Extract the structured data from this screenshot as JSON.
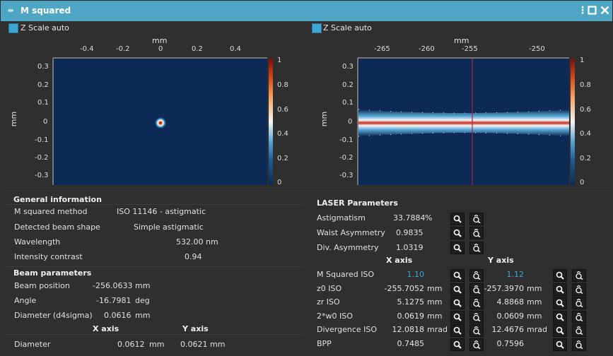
{
  "window": {
    "title": "M squared"
  },
  "left_plot": {
    "zscale_label": "Z Scale auto",
    "x_unit": "mm",
    "y_unit": "mm",
    "x_ticks": [
      "-0.4",
      "-0.2",
      "0",
      "0.2",
      "0.4"
    ],
    "y_ticks": [
      "0.3",
      "0.2",
      "0.1",
      "0",
      "-0.1",
      "-0.2",
      "-0.3"
    ],
    "colorbar_ticks": [
      "1",
      "0.8",
      "0.6",
      "0.4",
      "0.2",
      "0"
    ]
  },
  "right_plot": {
    "zscale_label": "Z Scale auto",
    "x_unit": "mm",
    "y_unit": "mm",
    "x_ticks": [
      "-265",
      "-260",
      "-255",
      "-250"
    ],
    "y_ticks": [
      "0.3",
      "0.2",
      "0.1",
      "0",
      "-0.1",
      "-0.2",
      "-0.3"
    ],
    "colorbar_ticks": [
      "1",
      "0.8",
      "0.6",
      "0.4",
      "0.2",
      "0"
    ]
  },
  "general": {
    "heading": "General information",
    "rows": [
      {
        "label": "M squared method",
        "value": "ISO 11146 - astigmatic"
      },
      {
        "label": "Detected beam shape",
        "value": "Simple astigmatic"
      },
      {
        "label": "Wavelength",
        "value": "532.00",
        "unit": "nm"
      },
      {
        "label": "Intensity contrast",
        "value": "0.94"
      }
    ]
  },
  "beam": {
    "heading": "Beam parameters",
    "rows": [
      {
        "label": "Beam position",
        "value": "-256.0633",
        "unit": "mm"
      },
      {
        "label": "Angle",
        "value": "-16.7981",
        "unit": "deg"
      },
      {
        "label": "Diameter (d4sigma)",
        "value": "0.0616",
        "unit": "mm"
      }
    ],
    "x_axis": "X axis",
    "y_axis": "Y axis",
    "diameter": {
      "label": "Diameter",
      "x": "0.0612",
      "x_unit": "mm",
      "y": "0.0621",
      "y_unit": "mm"
    }
  },
  "laser": {
    "heading": "LASER Parameters",
    "top_rows": [
      {
        "label": "Astigmatism",
        "value": "33.7884",
        "unit": "%"
      },
      {
        "label": "Waist Asymmetry",
        "value": "0.9835"
      },
      {
        "label": "Div. Asymmetry",
        "value": "1.0319"
      }
    ],
    "x_axis": "X axis",
    "y_axis": "Y axis",
    "rows": [
      {
        "label": "M Squared ISO",
        "x": "1.10",
        "x_unit": "",
        "y": "1.12",
        "y_unit": ""
      },
      {
        "label": "z0 ISO",
        "x": "-255.7052",
        "x_unit": "mm",
        "y": "-257.3970",
        "y_unit": "mm"
      },
      {
        "label": "zr ISO",
        "x": "5.1275",
        "x_unit": "mm",
        "y": "4.8868",
        "y_unit": "mm"
      },
      {
        "label": "2*w0 ISO",
        "x": "0.0619",
        "x_unit": "mm",
        "y": "0.0609",
        "y_unit": "mm"
      },
      {
        "label": "Divergence ISO",
        "x": "12.0818",
        "x_unit": "mrad",
        "y": "12.4676",
        "y_unit": "mrad"
      },
      {
        "label": "BPP",
        "x": "0.7485",
        "x_unit": "",
        "y": "0.7596",
        "y_unit": ""
      }
    ]
  }
}
